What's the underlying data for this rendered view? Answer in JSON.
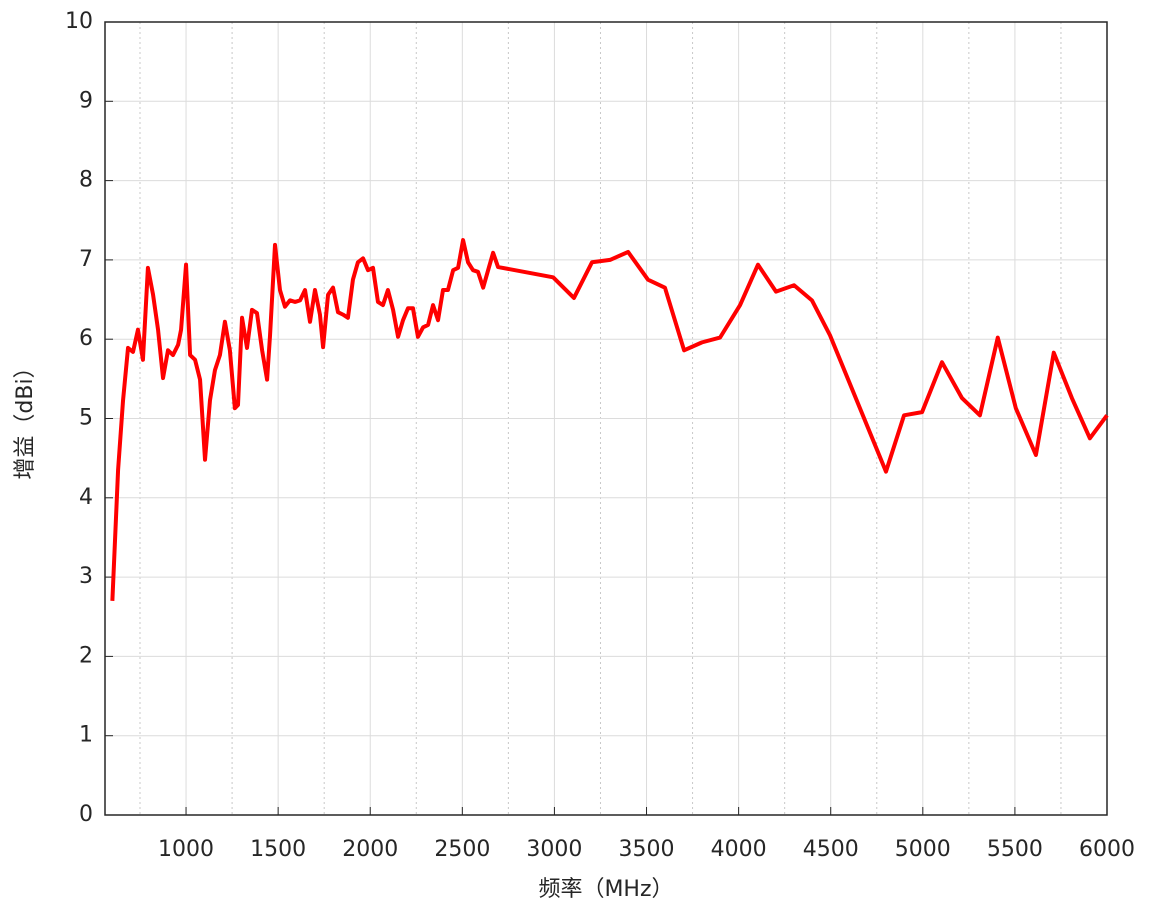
{
  "chart_data": {
    "type": "line",
    "x_label": "频率（MHz）",
    "y_label": "增益（dBi）",
    "x": [
      600,
      631,
      658,
      685,
      712,
      739,
      766,
      793,
      821,
      848,
      875,
      902,
      929,
      957,
      973,
      1000,
      1022,
      1049,
      1076,
      1103,
      1130,
      1157,
      1184,
      1211,
      1238,
      1265,
      1282,
      1304,
      1331,
      1358,
      1385,
      1413,
      1440,
      1456,
      1483,
      1510,
      1537,
      1564,
      1592,
      1619,
      1646,
      1673,
      1700,
      1727,
      1744,
      1771,
      1798,
      1825,
      1852,
      1879,
      1906,
      1933,
      1961,
      1988,
      2015,
      2042,
      2069,
      2096,
      2124,
      2151,
      2178,
      2205,
      2232,
      2259,
      2287,
      2314,
      2341,
      2368,
      2395,
      2422,
      2450,
      2477,
      2504,
      2531,
      2558,
      2585,
      2613,
      2640,
      2667,
      2694,
      2993,
      3106,
      3204,
      3302,
      3400,
      3508,
      3600,
      3704,
      3801,
      3899,
      4008,
      4105,
      4203,
      4301,
      4398,
      4496,
      4800,
      4898,
      4996,
      5104,
      5212,
      5310,
      5407,
      5505,
      5614,
      5711,
      5809,
      5907,
      6000
    ],
    "series": [
      {
        "color": "#ff0000",
        "values": [
          2.7,
          4.35,
          5.23,
          5.89,
          5.84,
          6.12,
          5.74,
          6.9,
          6.56,
          6.12,
          5.51,
          5.86,
          5.8,
          5.93,
          6.12,
          6.94,
          5.8,
          5.74,
          5.49,
          4.48,
          5.23,
          5.61,
          5.8,
          6.22,
          5.86,
          5.13,
          5.17,
          6.27,
          5.89,
          6.37,
          6.33,
          5.86,
          5.49,
          6.05,
          7.19,
          6.62,
          6.41,
          6.49,
          6.47,
          6.49,
          6.62,
          6.22,
          6.62,
          6.31,
          5.9,
          6.56,
          6.65,
          6.34,
          6.31,
          6.27,
          6.75,
          6.97,
          7.02,
          6.87,
          6.9,
          6.47,
          6.43,
          6.62,
          6.37,
          6.03,
          6.24,
          6.39,
          6.39,
          6.03,
          6.15,
          6.18,
          6.43,
          6.24,
          6.62,
          6.62,
          6.87,
          6.9,
          7.25,
          6.97,
          6.87,
          6.85,
          6.65,
          6.87,
          7.09,
          6.91,
          6.78,
          6.52,
          6.97,
          7.0,
          7.1,
          6.75,
          6.65,
          5.86,
          5.96,
          6.02,
          6.43,
          6.94,
          6.6,
          6.68,
          6.49,
          6.05,
          4.33,
          5.04,
          5.08,
          5.71,
          5.26,
          5.04,
          6.02,
          5.13,
          4.54,
          5.83,
          5.26,
          4.75,
          5.04
        ]
      }
    ],
    "xlim": [
      560,
      6000
    ],
    "ylim": [
      0,
      10
    ],
    "xticks": [
      1000,
      1500,
      2000,
      2500,
      3000,
      3500,
      4000,
      4500,
      5000,
      5500,
      6000
    ],
    "xminorticks": [
      750,
      1250,
      1750,
      2250,
      2750,
      3250,
      3750,
      4250,
      4750,
      5250,
      5750
    ],
    "yticks": [
      0,
      1,
      2,
      3,
      4,
      5,
      6,
      7,
      8,
      9,
      10
    ],
    "grid": true
  }
}
